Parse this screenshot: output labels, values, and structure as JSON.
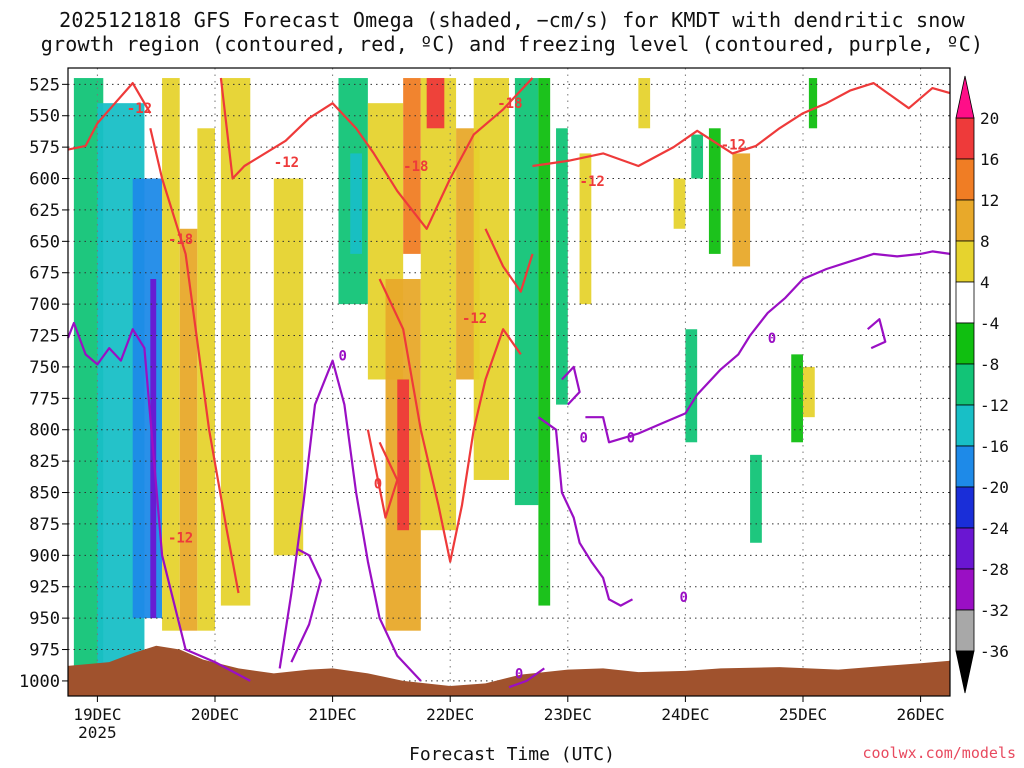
{
  "chart_data": {
    "type": "heatmap",
    "title_line1": "2025121818 GFS Forecast Omega (shaded, −cm/s) for KMDT with dendritic snow",
    "title_line2": "growth region (contoured, red, ºC) and freezing level (contoured, purple, ºC)",
    "xlabel": "Forecast Time (UTC)",
    "credit": "coolwx.com/models",
    "x_ticks": [
      "19DEC",
      "20DEC",
      "21DEC",
      "22DEC",
      "23DEC",
      "24DEC",
      "25DEC",
      "26DEC"
    ],
    "x_year": "2025",
    "x_range_days": [
      -0.25,
      7.25
    ],
    "y_ticks": [
      525,
      550,
      575,
      600,
      625,
      650,
      675,
      700,
      725,
      750,
      775,
      800,
      825,
      850,
      875,
      900,
      925,
      950,
      975,
      1000
    ],
    "y_range_hpa": [
      512,
      1012
    ],
    "colorbar": {
      "levels": [
        20,
        16,
        12,
        8,
        4,
        -4,
        -8,
        -12,
        -16,
        -20,
        -24,
        -28,
        -32,
        -36
      ],
      "colors": [
        "#ff0e88",
        "#ee3a3a",
        "#f07d24",
        "#e8a92a",
        "#e6d32e",
        "#ffffff",
        "#10bf10",
        "#12c477",
        "#18bfc6",
        "#1e8ae8",
        "#1a2ed8",
        "#6a16d2",
        "#9a0fc4",
        "#a8a8a8",
        "#000000"
      ]
    },
    "omega_cells": [
      {
        "t": [
          -0.2,
          0.05
        ],
        "p": [
          520,
          1000
        ],
        "v": -10
      },
      {
        "t": [
          0.0,
          0.4
        ],
        "p": [
          540,
          990
        ],
        "v": -14
      },
      {
        "t": [
          0.3,
          0.55
        ],
        "p": [
          600,
          950
        ],
        "v": -20
      },
      {
        "t": [
          0.45,
          0.5
        ],
        "p": [
          680,
          950
        ],
        "v": -28
      },
      {
        "t": [
          0.55,
          0.7
        ],
        "p": [
          520,
          960
        ],
        "v": 6
      },
      {
        "t": [
          0.7,
          0.85
        ],
        "p": [
          640,
          960
        ],
        "v": 10
      },
      {
        "t": [
          0.85,
          1.0
        ],
        "p": [
          560,
          960
        ],
        "v": 5
      },
      {
        "t": [
          1.05,
          1.3
        ],
        "p": [
          520,
          940
        ],
        "v": 5
      },
      {
        "t": [
          1.5,
          1.75
        ],
        "p": [
          600,
          900
        ],
        "v": 5
      },
      {
        "t": [
          2.05,
          2.3
        ],
        "p": [
          520,
          700
        ],
        "v": -10
      },
      {
        "t": [
          2.15,
          2.25
        ],
        "p": [
          580,
          660
        ],
        "v": -14
      },
      {
        "t": [
          2.3,
          2.6
        ],
        "p": [
          540,
          760
        ],
        "v": 5
      },
      {
        "t": [
          2.45,
          2.75
        ],
        "p": [
          680,
          960
        ],
        "v": 8
      },
      {
        "t": [
          2.55,
          2.65
        ],
        "p": [
          760,
          880
        ],
        "v": 18
      },
      {
        "t": [
          2.6,
          2.75
        ],
        "p": [
          520,
          660
        ],
        "v": 12
      },
      {
        "t": [
          2.75,
          3.05
        ],
        "p": [
          520,
          880
        ],
        "v": 6
      },
      {
        "t": [
          2.8,
          2.95
        ],
        "p": [
          520,
          560
        ],
        "v": 18
      },
      {
        "t": [
          3.05,
          3.25
        ],
        "p": [
          560,
          760
        ],
        "v": 10
      },
      {
        "t": [
          3.2,
          3.5
        ],
        "p": [
          520,
          840
        ],
        "v": 5
      },
      {
        "t": [
          3.55,
          3.75
        ],
        "p": [
          520,
          860
        ],
        "v": -9
      },
      {
        "t": [
          3.75,
          3.85
        ],
        "p": [
          520,
          940
        ],
        "v": -8
      },
      {
        "t": [
          3.9,
          4.0
        ],
        "p": [
          560,
          780
        ],
        "v": -9
      },
      {
        "t": [
          4.1,
          4.2
        ],
        "p": [
          580,
          700
        ],
        "v": 5
      },
      {
        "t": [
          4.6,
          4.7
        ],
        "p": [
          520,
          560
        ],
        "v": 5
      },
      {
        "t": [
          4.9,
          5.0
        ],
        "p": [
          600,
          640
        ],
        "v": 5
      },
      {
        "t": [
          5.0,
          5.1
        ],
        "p": [
          720,
          810
        ],
        "v": -9
      },
      {
        "t": [
          5.05,
          5.15
        ],
        "p": [
          565,
          600
        ],
        "v": -9
      },
      {
        "t": [
          5.2,
          5.3
        ],
        "p": [
          560,
          660
        ],
        "v": -8
      },
      {
        "t": [
          5.4,
          5.55
        ],
        "p": [
          580,
          670
        ],
        "v": 10
      },
      {
        "t": [
          5.55,
          5.65
        ],
        "p": [
          820,
          890
        ],
        "v": -9
      },
      {
        "t": [
          5.9,
          6.0
        ],
        "p": [
          740,
          810
        ],
        "v": -8
      },
      {
        "t": [
          6.0,
          6.1
        ],
        "p": [
          750,
          790
        ],
        "v": 6
      },
      {
        "t": [
          6.05,
          6.12
        ],
        "p": [
          520,
          560
        ],
        "v": -8
      }
    ],
    "contours": {
      "dgz_minus12_label": "-12",
      "dgz_minus18_label": "-18",
      "dgz_zero_label": "0",
      "freezing_label": "0"
    },
    "labels": [
      {
        "text": "-12",
        "t": 0.25,
        "p": 544,
        "color": "#ee3a3a"
      },
      {
        "text": "-18",
        "t": 0.6,
        "p": 648,
        "color": "#ee3a3a"
      },
      {
        "text": "-12",
        "t": 0.6,
        "p": 886,
        "color": "#ee3a3a"
      },
      {
        "text": "-12",
        "t": 1.5,
        "p": 587,
        "color": "#ee3a3a"
      },
      {
        "text": "-18",
        "t": 2.6,
        "p": 590,
        "color": "#ee3a3a"
      },
      {
        "text": "0",
        "t": 2.35,
        "p": 843,
        "color": "#ee3a3a"
      },
      {
        "text": "-12",
        "t": 3.1,
        "p": 711,
        "color": "#ee3a3a"
      },
      {
        "text": "-18",
        "t": 3.4,
        "p": 540,
        "color": "#ee3a3a"
      },
      {
        "text": "-12",
        "t": 4.1,
        "p": 602,
        "color": "#ee3a3a"
      },
      {
        "text": "-12",
        "t": 5.3,
        "p": 573,
        "color": "#ee3a3a"
      },
      {
        "text": "0",
        "t": 3.55,
        "p": 994,
        "color": "#9a0fc4"
      },
      {
        "text": "0",
        "t": 4.1,
        "p": 806,
        "color": "#9a0fc4"
      },
      {
        "text": "0",
        "t": 4.5,
        "p": 806,
        "color": "#9a0fc4"
      },
      {
        "text": "0",
        "t": 4.95,
        "p": 933,
        "color": "#9a0fc4"
      },
      {
        "text": "0",
        "t": 5.7,
        "p": 727,
        "color": "#9a0fc4"
      },
      {
        "text": "0",
        "t": 2.05,
        "p": 741,
        "color": "#9a0fc4"
      }
    ],
    "dgz_red_lines": [
      [
        [
          -0.25,
          577
        ],
        [
          -0.1,
          574
        ],
        [
          0.0,
          556
        ],
        [
          0.15,
          540
        ],
        [
          0.3,
          524
        ],
        [
          0.45,
          548
        ]
      ],
      [
        [
          0.45,
          560
        ],
        [
          0.55,
          600
        ],
        [
          0.75,
          660
        ],
        [
          0.95,
          800
        ],
        [
          1.1,
          880
        ],
        [
          1.2,
          930
        ]
      ],
      [
        [
          1.05,
          520
        ],
        [
          1.15,
          600
        ],
        [
          1.25,
          590
        ],
        [
          1.6,
          570
        ],
        [
          1.8,
          552
        ],
        [
          2.0,
          540
        ],
        [
          2.2,
          560
        ],
        [
          2.35,
          580
        ],
        [
          2.55,
          610
        ],
        [
          2.8,
          640
        ],
        [
          3.0,
          600
        ],
        [
          3.2,
          565
        ],
        [
          3.45,
          545
        ],
        [
          3.7,
          520
        ]
      ],
      [
        [
          3.7,
          590
        ],
        [
          4.0,
          586
        ],
        [
          4.3,
          580
        ],
        [
          4.6,
          590
        ],
        [
          4.9,
          575
        ],
        [
          5.1,
          562
        ],
        [
          5.4,
          580
        ],
        [
          5.6,
          574
        ],
        [
          5.8,
          560
        ],
        [
          6.0,
          548
        ],
        [
          6.2,
          540
        ],
        [
          6.4,
          530
        ],
        [
          6.6,
          524
        ],
        [
          6.9,
          544
        ],
        [
          7.1,
          528
        ],
        [
          7.25,
          532
        ]
      ],
      [
        [
          2.4,
          680
        ],
        [
          2.6,
          720
        ],
        [
          2.75,
          800
        ],
        [
          2.9,
          860
        ],
        [
          3.0,
          905
        ],
        [
          3.1,
          860
        ],
        [
          3.2,
          800
        ],
        [
          3.3,
          760
        ],
        [
          3.45,
          720
        ],
        [
          3.6,
          740
        ]
      ],
      [
        [
          2.3,
          800
        ],
        [
          2.45,
          870
        ],
        [
          2.55,
          840
        ],
        [
          2.4,
          810
        ]
      ],
      [
        [
          3.3,
          640
        ],
        [
          3.45,
          670
        ],
        [
          3.6,
          690
        ],
        [
          3.7,
          660
        ]
      ]
    ],
    "freezing_purple_lines": [
      [
        [
          -0.25,
          727
        ],
        [
          -0.2,
          715
        ],
        [
          -0.1,
          740
        ],
        [
          0.0,
          748
        ],
        [
          0.1,
          735
        ],
        [
          0.2,
          745
        ],
        [
          0.3,
          720
        ],
        [
          0.4,
          735
        ],
        [
          0.55,
          900
        ],
        [
          0.75,
          975
        ],
        [
          1.0,
          985
        ],
        [
          1.3,
          1000
        ]
      ],
      [
        [
          1.55,
          990
        ],
        [
          1.65,
          930
        ],
        [
          1.75,
          860
        ],
        [
          1.85,
          780
        ],
        [
          2.0,
          745
        ],
        [
          2.1,
          780
        ],
        [
          2.2,
          850
        ],
        [
          2.3,
          905
        ],
        [
          2.4,
          950
        ],
        [
          2.55,
          980
        ],
        [
          2.75,
          1000
        ]
      ],
      [
        [
          1.7,
          895
        ],
        [
          1.8,
          900
        ],
        [
          1.9,
          920
        ],
        [
          1.8,
          955
        ],
        [
          1.65,
          985
        ]
      ],
      [
        [
          3.5,
          1005
        ],
        [
          3.65,
          1000
        ],
        [
          3.8,
          990
        ]
      ],
      [
        [
          3.75,
          790
        ],
        [
          3.9,
          800
        ],
        [
          3.95,
          850
        ],
        [
          4.05,
          870
        ],
        [
          4.1,
          890
        ],
        [
          4.2,
          905
        ],
        [
          4.3,
          918
        ],
        [
          4.35,
          935
        ],
        [
          4.45,
          940
        ],
        [
          4.55,
          935
        ]
      ],
      [
        [
          4.15,
          790
        ],
        [
          4.3,
          790
        ],
        [
          4.35,
          810
        ],
        [
          4.6,
          803
        ],
        [
          4.8,
          795
        ],
        [
          5.0,
          787
        ],
        [
          5.1,
          772
        ],
        [
          5.3,
          752
        ],
        [
          5.45,
          740
        ],
        [
          5.55,
          725
        ],
        [
          5.7,
          707
        ],
        [
          5.85,
          695
        ],
        [
          6.0,
          680
        ],
        [
          6.2,
          672
        ],
        [
          6.4,
          666
        ],
        [
          6.6,
          660
        ],
        [
          6.8,
          662
        ],
        [
          7.0,
          660
        ],
        [
          7.1,
          658
        ],
        [
          7.25,
          660
        ]
      ],
      [
        [
          3.95,
          760
        ],
        [
          4.05,
          750
        ],
        [
          4.1,
          770
        ],
        [
          4.0,
          780
        ]
      ],
      [
        [
          6.55,
          720
        ],
        [
          6.65,
          712
        ],
        [
          6.7,
          730
        ],
        [
          6.58,
          735
        ]
      ]
    ]
  }
}
